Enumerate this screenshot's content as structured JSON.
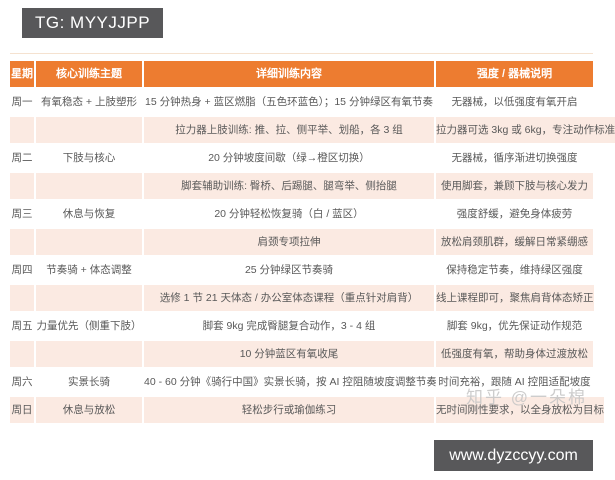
{
  "page": {
    "tg_label": "TG: MYYJJPP",
    "watermark": "知乎 @一朵棉",
    "url": "www.dyzccyy.com"
  },
  "colors": {
    "header_bg": "#ED7C30",
    "sub_row_bg": "#FBEAE2",
    "text": "#595959",
    "box_bg": "#58585A"
  },
  "table": {
    "headers": [
      "星期",
      "核心训练主题",
      "详细训练内容",
      "强度 / 器械说明"
    ],
    "rows": [
      {
        "day": "周一",
        "theme": "有氧稳态 + 上肢塑形",
        "content": "15 分钟热身 + 蓝区燃脂（五色环蓝色）；15 分钟绿区有氧节奏",
        "note": "无器械，以低强度有氧开启",
        "shade": "white"
      },
      {
        "day": "",
        "theme": "",
        "content": "拉力器上肢训练: 推、拉、侧平举、划船，各 3 组",
        "note": "拉力器可选 3kg 或 6kg，专注动作标准",
        "shade": "peach"
      },
      {
        "day": "周二",
        "theme": "下肢与核心",
        "content": "20 分钟坡度间歇（绿→橙区切换）",
        "note": "无器械，循序渐进切换强度",
        "shade": "white"
      },
      {
        "day": "",
        "theme": "",
        "content": "脚套辅助训练: 臀桥、后踢腿、腿弯举、侧抬腿",
        "note": "使用脚套，兼顾下肢与核心发力",
        "shade": "peach"
      },
      {
        "day": "周三",
        "theme": "休息与恢复",
        "content": "20 分钟轻松恢复骑（白 / 蓝区）",
        "note": "强度舒缓，避免身体疲劳",
        "shade": "white"
      },
      {
        "day": "",
        "theme": "",
        "content": "肩颈专项拉伸",
        "note": "放松肩颈肌群，缓解日常紧绷感",
        "shade": "peach"
      },
      {
        "day": "周四",
        "theme": "节奏骑 + 体态调整",
        "content": "25 分钟绿区节奏骑",
        "note": "保持稳定节奏，维持绿区强度",
        "shade": "white"
      },
      {
        "day": "",
        "theme": "",
        "content": "选修 1 节 21 天体态 / 办公室体态课程（重点针对肩背）",
        "note": "线上课程即可，聚焦肩背体态矫正",
        "shade": "peach"
      },
      {
        "day": "周五",
        "theme": "力量优先（侧重下肢）",
        "content": "脚套 9kg 完成臀腿复合动作，3 - 4 组",
        "note": "脚套 9kg，优先保证动作规范",
        "shade": "white"
      },
      {
        "day": "",
        "theme": "",
        "content": "10 分钟蓝区有氧收尾",
        "note": "低强度有氧，帮助身体过渡放松",
        "shade": "peach"
      },
      {
        "day": "周六",
        "theme": "实景长骑",
        "content": "40 - 60 分钟《骑行中国》实景长骑，按 AI 控阻随坡度调整节奏",
        "note": "时间充裕，跟随 AI 控阻适配坡度",
        "shade": "white"
      },
      {
        "day": "周日",
        "theme": "休息与放松",
        "content": "轻松步行或瑜伽练习",
        "note": "无时间刚性要求，以全身放松为目标",
        "shade": "peach"
      }
    ]
  }
}
